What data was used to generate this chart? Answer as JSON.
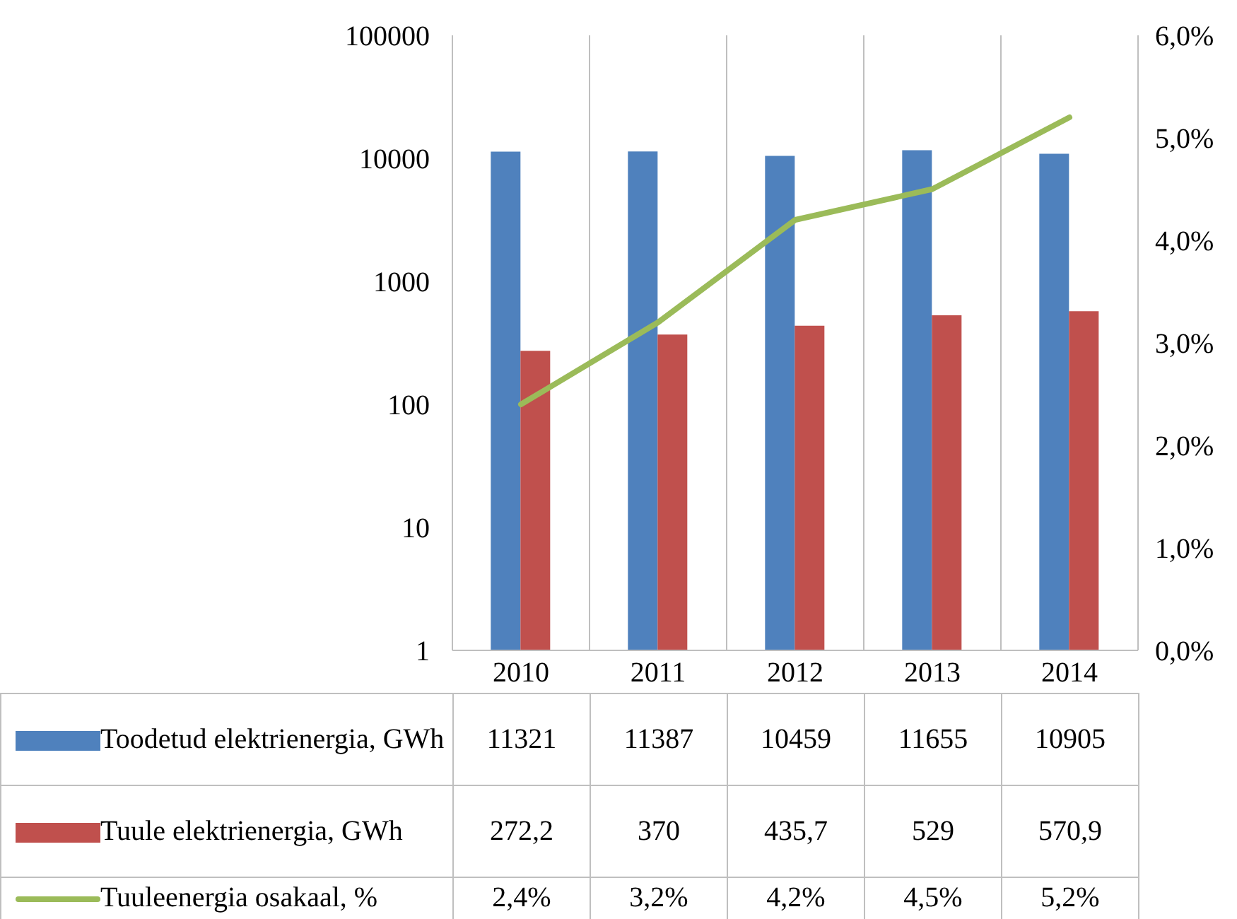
{
  "chart_data": {
    "type": "bar",
    "categories": [
      "2010",
      "2011",
      "2012",
      "2013",
      "2014"
    ],
    "series": [
      {
        "name": "Toodetud elektrienergia, GWh",
        "color": "#4f81bd",
        "values": [
          11321,
          11387,
          10459,
          11655,
          10905
        ],
        "value_labels": [
          "11321",
          "11387",
          "10459",
          "11655",
          "10905"
        ]
      },
      {
        "name": "Tuule elektrienergia, GWh",
        "color": "#c0504d",
        "values": [
          272.2,
          370,
          435.7,
          529,
          570.9
        ],
        "value_labels": [
          "272,2",
          "370",
          "435,7",
          "529",
          "570,9"
        ]
      },
      {
        "name": "Tuuleenergia osakaal, %",
        "type": "line",
        "axis": "y2",
        "color": "#9bbb59",
        "values": [
          2.4,
          3.2,
          4.2,
          4.5,
          5.2
        ],
        "value_labels": [
          "2,4%",
          "3,2%",
          "4,2%",
          "4,5%",
          "5,2%"
        ]
      }
    ],
    "log": true,
    "ylim": [
      1,
      100000
    ],
    "yticks": [
      1,
      10,
      100,
      1000,
      10000,
      100000
    ],
    "y2lim": [
      0,
      6
    ],
    "y2ticks": [
      {
        "value": 0,
        "label": "0,0%"
      },
      {
        "value": 1,
        "label": "1,0%"
      },
      {
        "value": 2,
        "label": "2,0%"
      },
      {
        "value": 3,
        "label": "3,0%"
      },
      {
        "value": 4,
        "label": "4,0%"
      },
      {
        "value": 5,
        "label": "5,0%"
      },
      {
        "value": 6,
        "label": "6,0%"
      }
    ],
    "grid": "x",
    "legend": "bottom"
  }
}
